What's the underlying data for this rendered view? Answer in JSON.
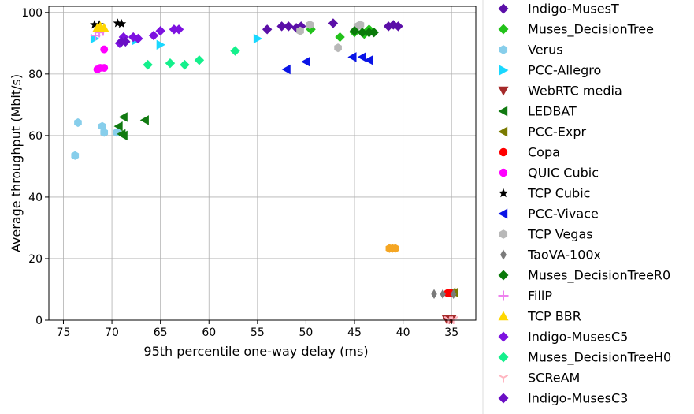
{
  "chart_data": {
    "type": "scatter",
    "xlabel": "95th percentile one-way delay (ms)",
    "ylabel": "Average throughput (Mbit/s)",
    "xlim": [
      76.5,
      32.5
    ],
    "ylim": [
      0,
      102
    ],
    "x_inverted": true,
    "x_ticks": [
      75,
      70,
      65,
      60,
      55,
      50,
      45,
      40,
      35
    ],
    "y_ticks": [
      0,
      20,
      40,
      60,
      80,
      100
    ],
    "grid": true,
    "legend_position": "right, outside plot",
    "series": [
      {
        "name": "Indigo-MusesT",
        "color": "#5b0fa8",
        "marker": "diamond",
        "points": [
          [
            54.0,
            94.5
          ],
          [
            52.5,
            95.5
          ],
          [
            51.8,
            95.5
          ],
          [
            51.0,
            95.0
          ],
          [
            50.5,
            95.5
          ],
          [
            47.2,
            96.5
          ],
          [
            41.5,
            95.5
          ],
          [
            41.0,
            96.0
          ],
          [
            40.5,
            95.5
          ]
        ]
      },
      {
        "name": "Muses_DecisionTree",
        "color": "#22c21a",
        "marker": "diamond",
        "points": [
          [
            49.5,
            94.5
          ],
          [
            46.5,
            92.0
          ],
          [
            45.0,
            93.5
          ],
          [
            44.0,
            93.0
          ],
          [
            43.5,
            94.5
          ]
        ]
      },
      {
        "name": "Verus",
        "color": "#87ceeb",
        "marker": "hexagon",
        "points": [
          [
            73.8,
            53.5
          ],
          [
            73.5,
            64.2
          ],
          [
            71.0,
            63.0
          ],
          [
            70.8,
            61.0
          ],
          [
            69.5,
            61.0
          ]
        ]
      },
      {
        "name": "PCC-Allegro",
        "color": "#19d8ff",
        "marker": "triangle-right",
        "points": [
          [
            71.8,
            91.5
          ],
          [
            67.5,
            91.0
          ],
          [
            65.0,
            89.5
          ],
          [
            55.0,
            91.5
          ]
        ]
      },
      {
        "name": "WebRTC media",
        "color": "#a52a2a",
        "marker": "triangle-down",
        "points": [
          [
            35.5,
            0.3
          ],
          [
            35.2,
            0.3
          ],
          [
            35.0,
            0.3
          ]
        ]
      },
      {
        "name": "LEDBAT",
        "color": "#117a11",
        "marker": "triangle-left",
        "points": [
          [
            69.3,
            63.0
          ],
          [
            69.0,
            60.5
          ],
          [
            68.8,
            60.0
          ],
          [
            68.8,
            66.0
          ],
          [
            66.6,
            65.0
          ]
        ]
      },
      {
        "name": "PCC-Expr",
        "color": "#7a7a00",
        "marker": "triangle-left",
        "points": [
          [
            35.0,
            9.0
          ],
          [
            34.7,
            9.0
          ]
        ]
      },
      {
        "name": "Copa",
        "color": "#ff0000",
        "marker": "circle",
        "points": [
          [
            35.4,
            8.8
          ],
          [
            35.1,
            8.8
          ]
        ]
      },
      {
        "name": "QUIC Cubic",
        "color": "#ff00ff",
        "marker": "circle",
        "points": [
          [
            71.5,
            81.5
          ],
          [
            71.2,
            82.0
          ],
          [
            70.8,
            82.0
          ],
          [
            70.8,
            88.0
          ]
        ]
      },
      {
        "name": "TCP Cubic",
        "color": "#000000",
        "marker": "star",
        "points": [
          [
            71.8,
            96.0
          ],
          [
            71.3,
            96.0
          ],
          [
            69.4,
            96.5
          ],
          [
            69.0,
            96.3
          ]
        ]
      },
      {
        "name": "PCC-Vivace",
        "color": "#0a14e6",
        "marker": "triangle-left",
        "points": [
          [
            52.0,
            81.5
          ],
          [
            50.0,
            84.0
          ],
          [
            45.2,
            85.5
          ],
          [
            44.2,
            85.5
          ],
          [
            43.5,
            84.5
          ]
        ]
      },
      {
        "name": "TCP Vegas",
        "color": "#b8b8b8",
        "marker": "hexagon",
        "points": [
          [
            50.6,
            94.0
          ],
          [
            49.6,
            96.0
          ],
          [
            46.7,
            88.5
          ],
          [
            44.7,
            95.5
          ],
          [
            44.4,
            96.0
          ]
        ]
      },
      {
        "name": "TaoVA-100x",
        "color": "#7a7a7a",
        "marker": "thin-diamond",
        "points": [
          [
            36.8,
            8.5
          ],
          [
            35.9,
            8.5
          ],
          [
            34.8,
            8.5
          ]
        ]
      },
      {
        "name": "Muses_DecisionTreeR0",
        "color": "#0a7a0a",
        "marker": "diamond",
        "points": [
          [
            45.0,
            94.0
          ],
          [
            44.2,
            93.5
          ],
          [
            43.5,
            93.5
          ],
          [
            43.0,
            93.5
          ]
        ]
      },
      {
        "name": "FillP",
        "color": "#ee82ee",
        "marker": "plus",
        "points": [
          [
            71.7,
            92.5
          ],
          [
            71.3,
            93.5
          ],
          [
            70.9,
            94.0
          ]
        ]
      },
      {
        "name": "TCP BBR",
        "color": "#ffd700",
        "marker": "triangle-up",
        "points": [
          [
            71.5,
            95.0
          ],
          [
            71.2,
            95.5
          ],
          [
            70.8,
            95.0
          ]
        ]
      },
      {
        "name": "Indigo-MusesC5",
        "color": "#7d12e0",
        "marker": "diamond",
        "points": [
          [
            69.2,
            90.0
          ],
          [
            68.8,
            92.0
          ],
          [
            67.8,
            92.0
          ],
          [
            67.3,
            91.5
          ],
          [
            65.7,
            92.5
          ],
          [
            65.0,
            94.0
          ],
          [
            63.6,
            94.5
          ],
          [
            63.1,
            94.5
          ]
        ]
      },
      {
        "name": "Muses_DecisionTreeH0",
        "color": "#14f08c",
        "marker": "diamond",
        "points": [
          [
            66.3,
            83.0
          ],
          [
            64.0,
            83.5
          ],
          [
            62.5,
            83.0
          ],
          [
            61.0,
            84.5
          ],
          [
            57.3,
            87.5
          ]
        ]
      },
      {
        "name": "SCReAM",
        "color": "#ffb6c1",
        "marker": "tri-down",
        "points": [
          [
            35.3,
            0.3
          ],
          [
            34.8,
            0.3
          ]
        ]
      },
      {
        "name": "Indigo-MusesC3",
        "color": "#6a0fc4",
        "marker": "diamond",
        "points": [
          [
            69.0,
            90.5
          ],
          [
            68.6,
            90.5
          ]
        ]
      },
      {
        "name": "",
        "color": "#f5a623",
        "marker": "hexagon",
        "points": [
          [
            41.4,
            23.3
          ],
          [
            41.1,
            23.3
          ],
          [
            40.8,
            23.3
          ]
        ]
      }
    ]
  }
}
